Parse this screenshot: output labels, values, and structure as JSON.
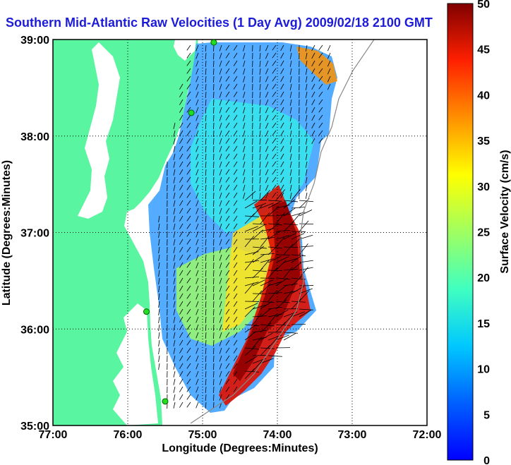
{
  "title": "Southern Mid-Atlantic Raw Velocities (1 Day Avg) 2009/02/18 2100 GMT",
  "axes": {
    "xlabel": "Longitude (Degrees:Minutes)",
    "ylabel": "Latitude (Degrees:Minutes)",
    "x_ticks": [
      "77:00",
      "76:00",
      "75:00",
      "74:00",
      "73:00",
      "72:00"
    ],
    "y_ticks": [
      "39:00",
      "38:00",
      "37:00",
      "36:00",
      "35:00"
    ],
    "xlim": [
      -77,
      -72
    ],
    "ylim": [
      35,
      39
    ],
    "grid": "dotted"
  },
  "colorbar": {
    "label": "Surface Velocity (cm/s)",
    "ticks": [
      "0",
      "5",
      "10",
      "15",
      "20",
      "25",
      "30",
      "35",
      "40",
      "45",
      "50"
    ],
    "range": [
      0,
      50
    ],
    "colormap": "jet"
  },
  "colors": {
    "land": "#5af5a0",
    "water": "#ffffff",
    "title": "#1c1cd8",
    "station": "#22dd22"
  },
  "stations": [
    {
      "lon": -74.85,
      "lat": 38.97
    },
    {
      "lon": -75.15,
      "lat": 38.24
    },
    {
      "lon": -75.75,
      "lat": 36.18
    },
    {
      "lon": -75.5,
      "lat": 35.25
    }
  ]
}
